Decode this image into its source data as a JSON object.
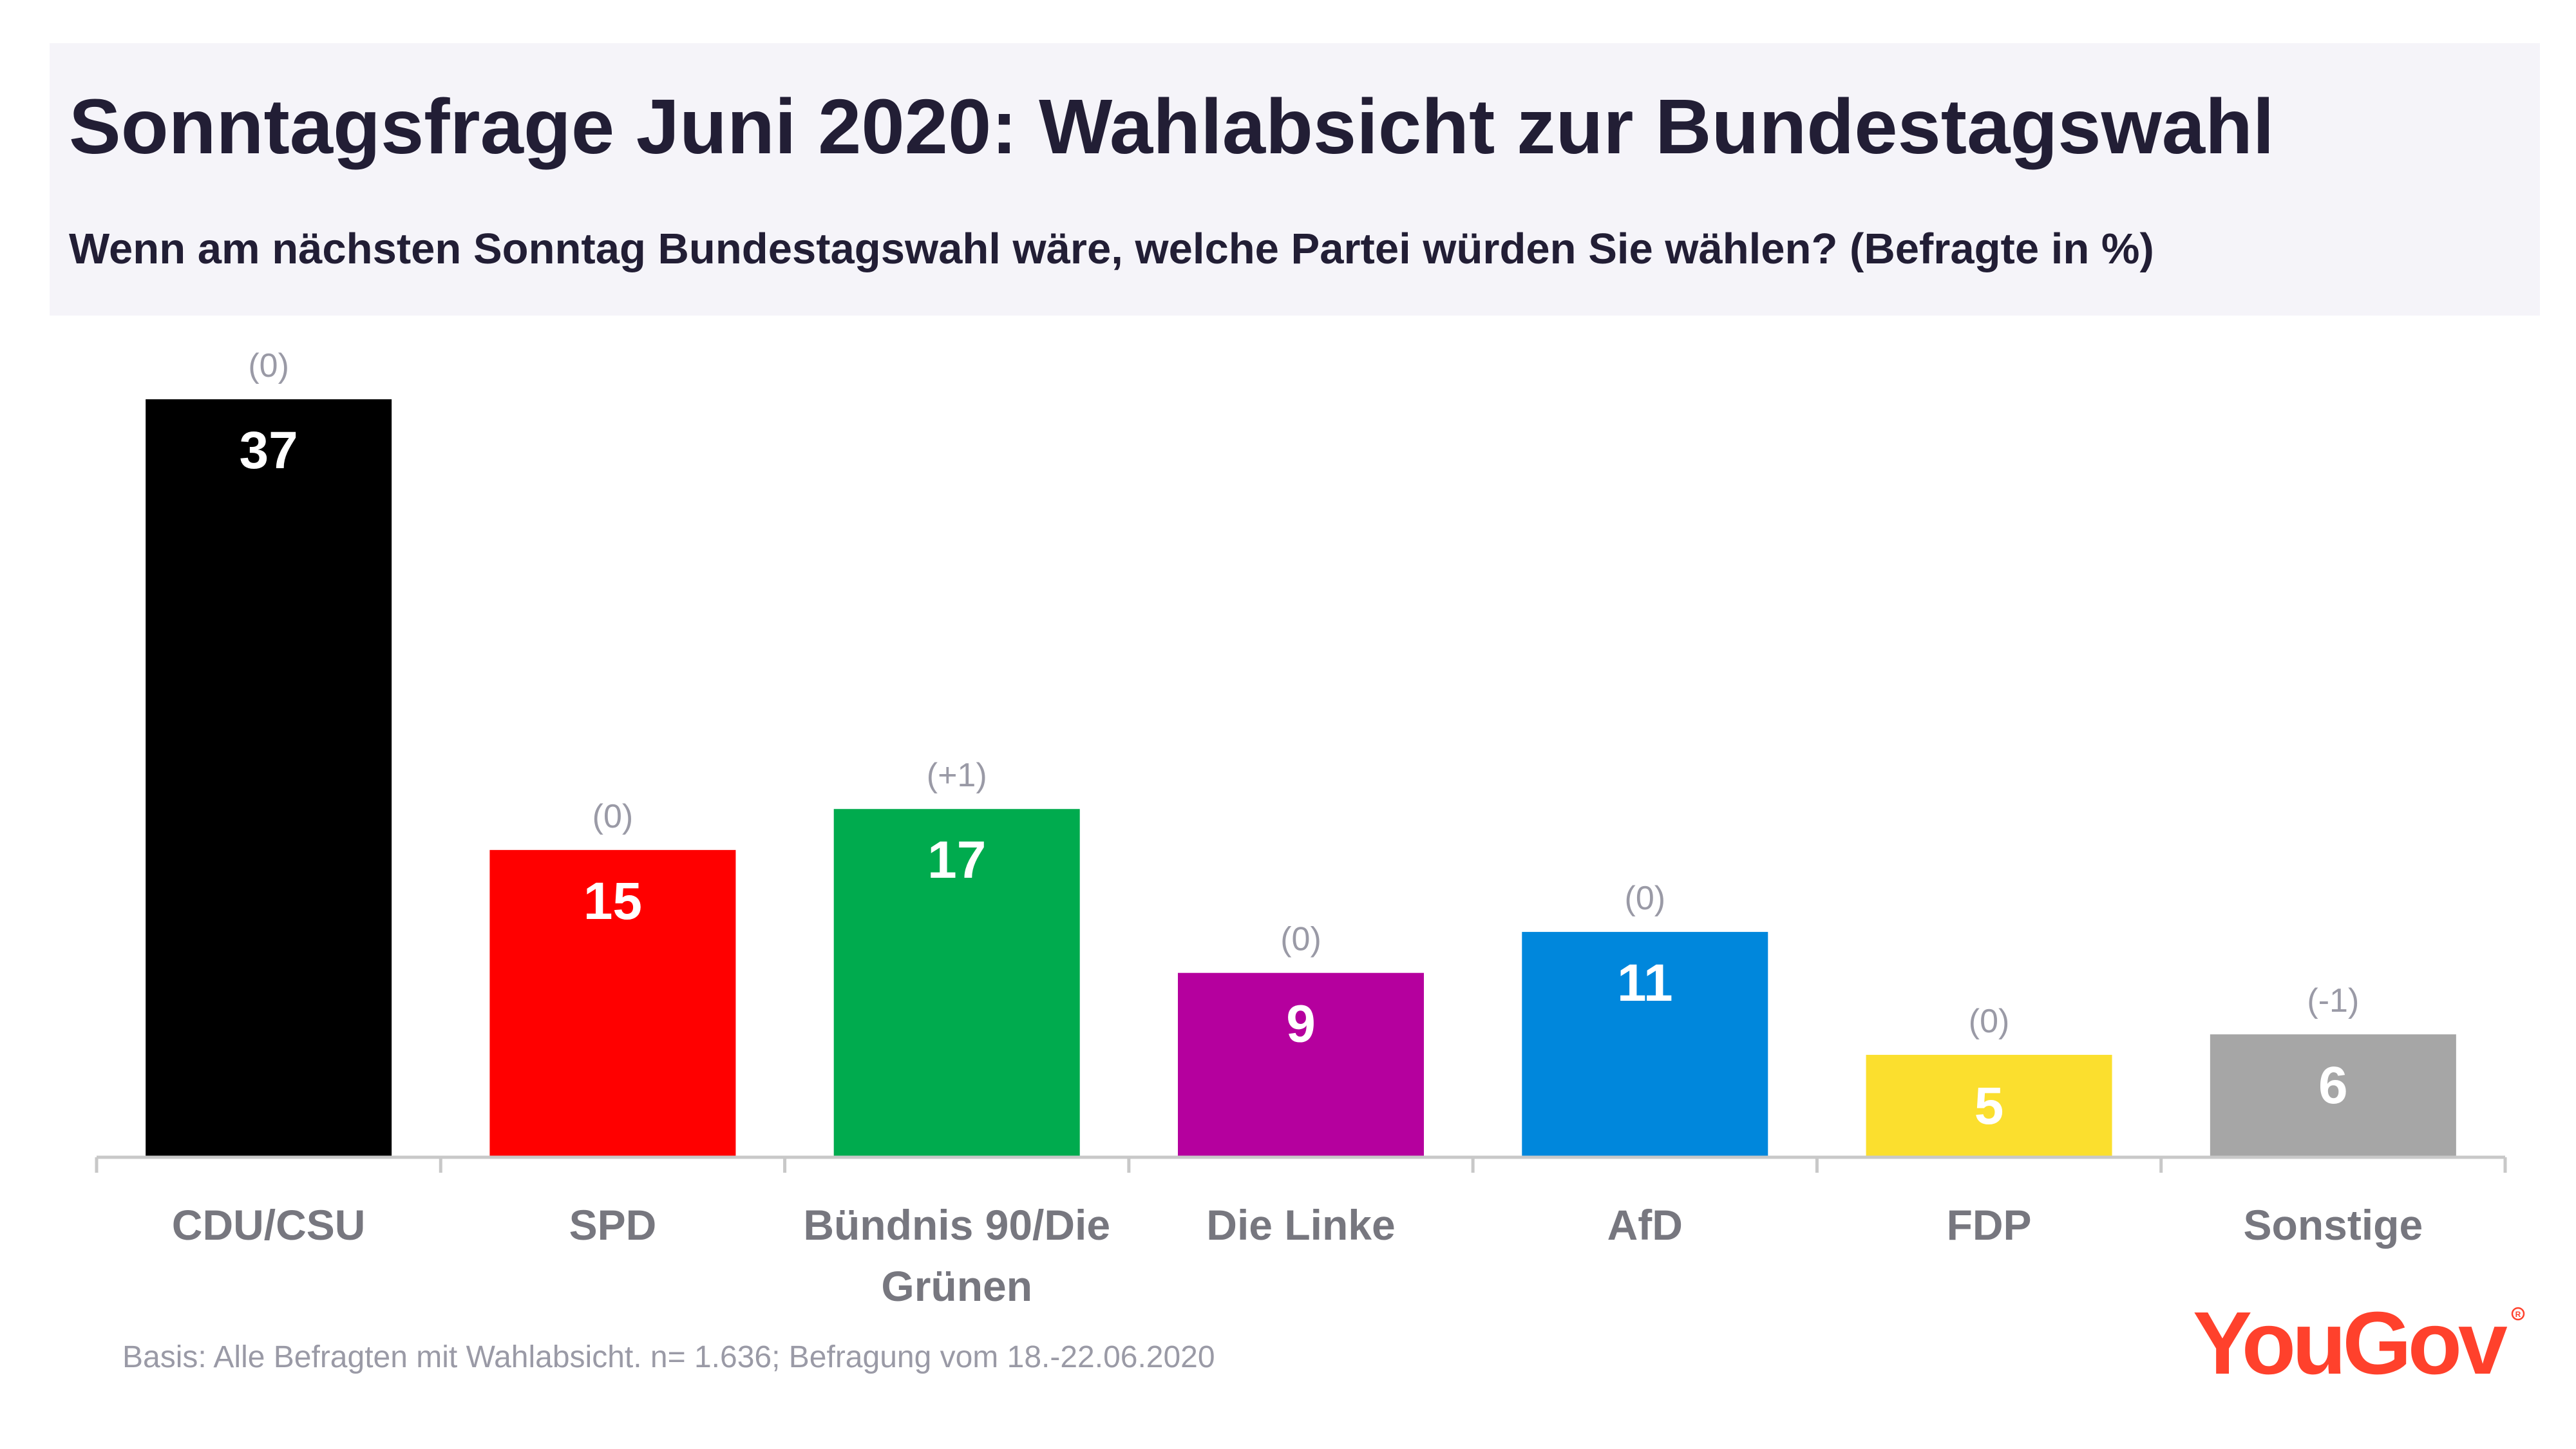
{
  "header": {
    "title": "Sonntagsfrage Juni 2020: Wahlabsicht zur Bundestagswahl",
    "subtitle": "Wenn am nächsten Sonntag Bundestagswahl wäre, welche Partei würden Sie wählen? (Befragte in %)"
  },
  "chart_data": {
    "type": "bar",
    "categories": [
      "CDU/CSU",
      "SPD",
      "Bündnis 90/Die Grünen",
      "Die Linke",
      "AfD",
      "FDP",
      "Sonstige"
    ],
    "category_lines": [
      [
        "CDU/CSU"
      ],
      [
        "SPD"
      ],
      [
        "Bündnis 90/Die",
        "Grünen"
      ],
      [
        "Die Linke"
      ],
      [
        "AfD"
      ],
      [
        "FDP"
      ],
      [
        "Sonstige"
      ]
    ],
    "values": [
      37,
      15,
      17,
      9,
      11,
      5,
      6
    ],
    "changes": [
      "(0)",
      "(0)",
      "(+1)",
      "(0)",
      "(0)",
      "(0)",
      "(-1)"
    ],
    "colors": [
      "#000000",
      "#ff0000",
      "#00ab4e",
      "#b5009e",
      "#0087dc",
      "#fbdf2e",
      "#a6a6a6"
    ],
    "value_label_colors": [
      "#ffffff",
      "#ffffff",
      "#ffffff",
      "#ffffff",
      "#ffffff",
      "#ffffff",
      "#ffffff"
    ],
    "ylim": [
      0,
      37
    ],
    "grid": false,
    "legend": "none"
  },
  "footnote": "Basis: Alle Befragten mit Wahlabsicht. n= 1.636; Befragung vom 18.-22.06.2020",
  "logo": {
    "text": "YouGov",
    "color": "#ff412c"
  }
}
